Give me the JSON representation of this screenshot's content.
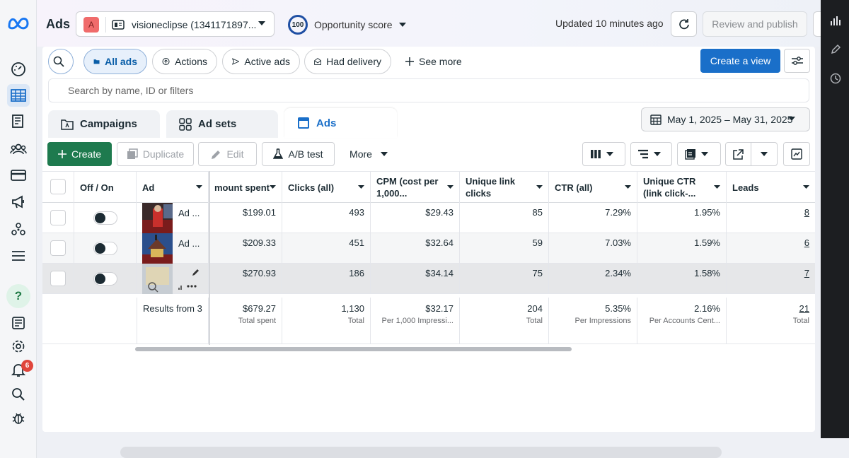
{
  "header": {
    "title": "Ads",
    "account_initial": "A",
    "account_name": "visioneclipse (1341171897...",
    "opportunity_score_value": "100",
    "opportunity_score_label": "Opportunity score",
    "updated_text": "Updated 10 minutes ago",
    "review_publish_label": "Review and publish"
  },
  "filters": {
    "all_ads": "All ads",
    "actions": "Actions",
    "active_ads": "Active ads",
    "had_delivery": "Had delivery",
    "see_more": "See more",
    "create_view": "Create a view",
    "search_placeholder": "Search by name, ID or filters"
  },
  "tabs": {
    "campaigns": "Campaigns",
    "ad_sets": "Ad sets",
    "ads": "Ads",
    "date_range": "May 1, 2025 – May 31, 2025"
  },
  "toolbar": {
    "create": "Create",
    "duplicate": "Duplicate",
    "edit": "Edit",
    "ab_test": "A/B test",
    "more": "More"
  },
  "table": {
    "headers": {
      "off_on": "Off / On",
      "ad": "Ad",
      "amount_spent": "mount spent",
      "clicks": "Clicks (all)",
      "cpm": "CPM (cost per 1,000...",
      "unique_link_clicks": "Unique link clicks",
      "ctr": "CTR (all)",
      "unique_ctr": "Unique CTR (link click-...",
      "leads": "Leads"
    },
    "rows": [
      {
        "ad": "Ad ...",
        "amount_spent": "$199.01",
        "clicks": "493",
        "cpm": "$29.43",
        "unique_link_clicks": "85",
        "ctr": "7.29%",
        "unique_ctr": "1.95%",
        "leads": "8"
      },
      {
        "ad": "Ad ...",
        "amount_spent": "$209.33",
        "clicks": "451",
        "cpm": "$32.64",
        "unique_link_clicks": "59",
        "ctr": "7.03%",
        "unique_ctr": "1.59%",
        "leads": "6"
      },
      {
        "ad": "",
        "amount_spent": "$270.93",
        "clicks": "186",
        "cpm": "$34.14",
        "unique_link_clicks": "75",
        "ctr": "2.34%",
        "unique_ctr": "1.58%",
        "leads": "7"
      }
    ],
    "totals": {
      "label": "Results from 3",
      "amount_spent": "$679.27",
      "amount_spent_sub": "Total spent",
      "clicks": "1,130",
      "clicks_sub": "Total",
      "cpm": "$32.17",
      "cpm_sub": "Per 1,000 Impressi...",
      "unique_link_clicks": "204",
      "unique_link_clicks_sub": "Total",
      "ctr": "5.35%",
      "ctr_sub": "Per Impressions",
      "unique_ctr": "2.16%",
      "unique_ctr_sub": "Per Accounts Cent...",
      "leads": "21",
      "leads_sub": "Total"
    }
  },
  "notifications": {
    "badge_count": "6"
  },
  "colors": {
    "primary": "#1a6fc9",
    "create_green": "#1e7a4e",
    "badge_red": "#e0453b"
  }
}
